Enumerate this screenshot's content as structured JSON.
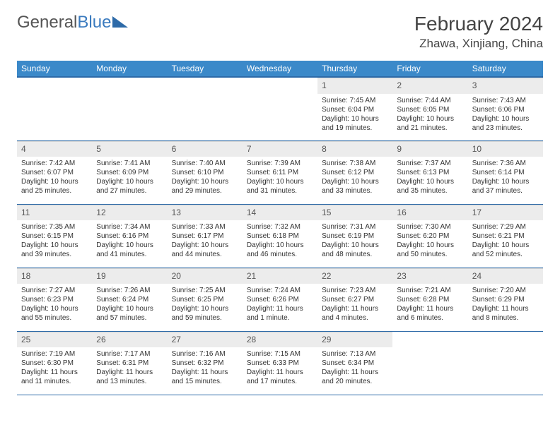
{
  "logo": {
    "part1": "General",
    "part2": "Blue"
  },
  "title": "February 2024",
  "location": "Zhawa, Xinjiang, China",
  "colors": {
    "header_bg": "#3b89c9",
    "header_border": "#2d6aa8",
    "daynum_bg": "#ececec",
    "text": "#333333"
  },
  "weekdays": [
    "Sunday",
    "Monday",
    "Tuesday",
    "Wednesday",
    "Thursday",
    "Friday",
    "Saturday"
  ],
  "first_weekday_index": 4,
  "days": [
    {
      "n": 1,
      "sr": "7:45 AM",
      "ss": "6:04 PM",
      "dl": "10 hours and 19 minutes."
    },
    {
      "n": 2,
      "sr": "7:44 AM",
      "ss": "6:05 PM",
      "dl": "10 hours and 21 minutes."
    },
    {
      "n": 3,
      "sr": "7:43 AM",
      "ss": "6:06 PM",
      "dl": "10 hours and 23 minutes."
    },
    {
      "n": 4,
      "sr": "7:42 AM",
      "ss": "6:07 PM",
      "dl": "10 hours and 25 minutes."
    },
    {
      "n": 5,
      "sr": "7:41 AM",
      "ss": "6:09 PM",
      "dl": "10 hours and 27 minutes."
    },
    {
      "n": 6,
      "sr": "7:40 AM",
      "ss": "6:10 PM",
      "dl": "10 hours and 29 minutes."
    },
    {
      "n": 7,
      "sr": "7:39 AM",
      "ss": "6:11 PM",
      "dl": "10 hours and 31 minutes."
    },
    {
      "n": 8,
      "sr": "7:38 AM",
      "ss": "6:12 PM",
      "dl": "10 hours and 33 minutes."
    },
    {
      "n": 9,
      "sr": "7:37 AM",
      "ss": "6:13 PM",
      "dl": "10 hours and 35 minutes."
    },
    {
      "n": 10,
      "sr": "7:36 AM",
      "ss": "6:14 PM",
      "dl": "10 hours and 37 minutes."
    },
    {
      "n": 11,
      "sr": "7:35 AM",
      "ss": "6:15 PM",
      "dl": "10 hours and 39 minutes."
    },
    {
      "n": 12,
      "sr": "7:34 AM",
      "ss": "6:16 PM",
      "dl": "10 hours and 41 minutes."
    },
    {
      "n": 13,
      "sr": "7:33 AM",
      "ss": "6:17 PM",
      "dl": "10 hours and 44 minutes."
    },
    {
      "n": 14,
      "sr": "7:32 AM",
      "ss": "6:18 PM",
      "dl": "10 hours and 46 minutes."
    },
    {
      "n": 15,
      "sr": "7:31 AM",
      "ss": "6:19 PM",
      "dl": "10 hours and 48 minutes."
    },
    {
      "n": 16,
      "sr": "7:30 AM",
      "ss": "6:20 PM",
      "dl": "10 hours and 50 minutes."
    },
    {
      "n": 17,
      "sr": "7:29 AM",
      "ss": "6:21 PM",
      "dl": "10 hours and 52 minutes."
    },
    {
      "n": 18,
      "sr": "7:27 AM",
      "ss": "6:23 PM",
      "dl": "10 hours and 55 minutes."
    },
    {
      "n": 19,
      "sr": "7:26 AM",
      "ss": "6:24 PM",
      "dl": "10 hours and 57 minutes."
    },
    {
      "n": 20,
      "sr": "7:25 AM",
      "ss": "6:25 PM",
      "dl": "10 hours and 59 minutes."
    },
    {
      "n": 21,
      "sr": "7:24 AM",
      "ss": "6:26 PM",
      "dl": "11 hours and 1 minute."
    },
    {
      "n": 22,
      "sr": "7:23 AM",
      "ss": "6:27 PM",
      "dl": "11 hours and 4 minutes."
    },
    {
      "n": 23,
      "sr": "7:21 AM",
      "ss": "6:28 PM",
      "dl": "11 hours and 6 minutes."
    },
    {
      "n": 24,
      "sr": "7:20 AM",
      "ss": "6:29 PM",
      "dl": "11 hours and 8 minutes."
    },
    {
      "n": 25,
      "sr": "7:19 AM",
      "ss": "6:30 PM",
      "dl": "11 hours and 11 minutes."
    },
    {
      "n": 26,
      "sr": "7:17 AM",
      "ss": "6:31 PM",
      "dl": "11 hours and 13 minutes."
    },
    {
      "n": 27,
      "sr": "7:16 AM",
      "ss": "6:32 PM",
      "dl": "11 hours and 15 minutes."
    },
    {
      "n": 28,
      "sr": "7:15 AM",
      "ss": "6:33 PM",
      "dl": "11 hours and 17 minutes."
    },
    {
      "n": 29,
      "sr": "7:13 AM",
      "ss": "6:34 PM",
      "dl": "11 hours and 20 minutes."
    }
  ],
  "labels": {
    "sunrise": "Sunrise: ",
    "sunset": "Sunset: ",
    "daylight": "Daylight: "
  }
}
